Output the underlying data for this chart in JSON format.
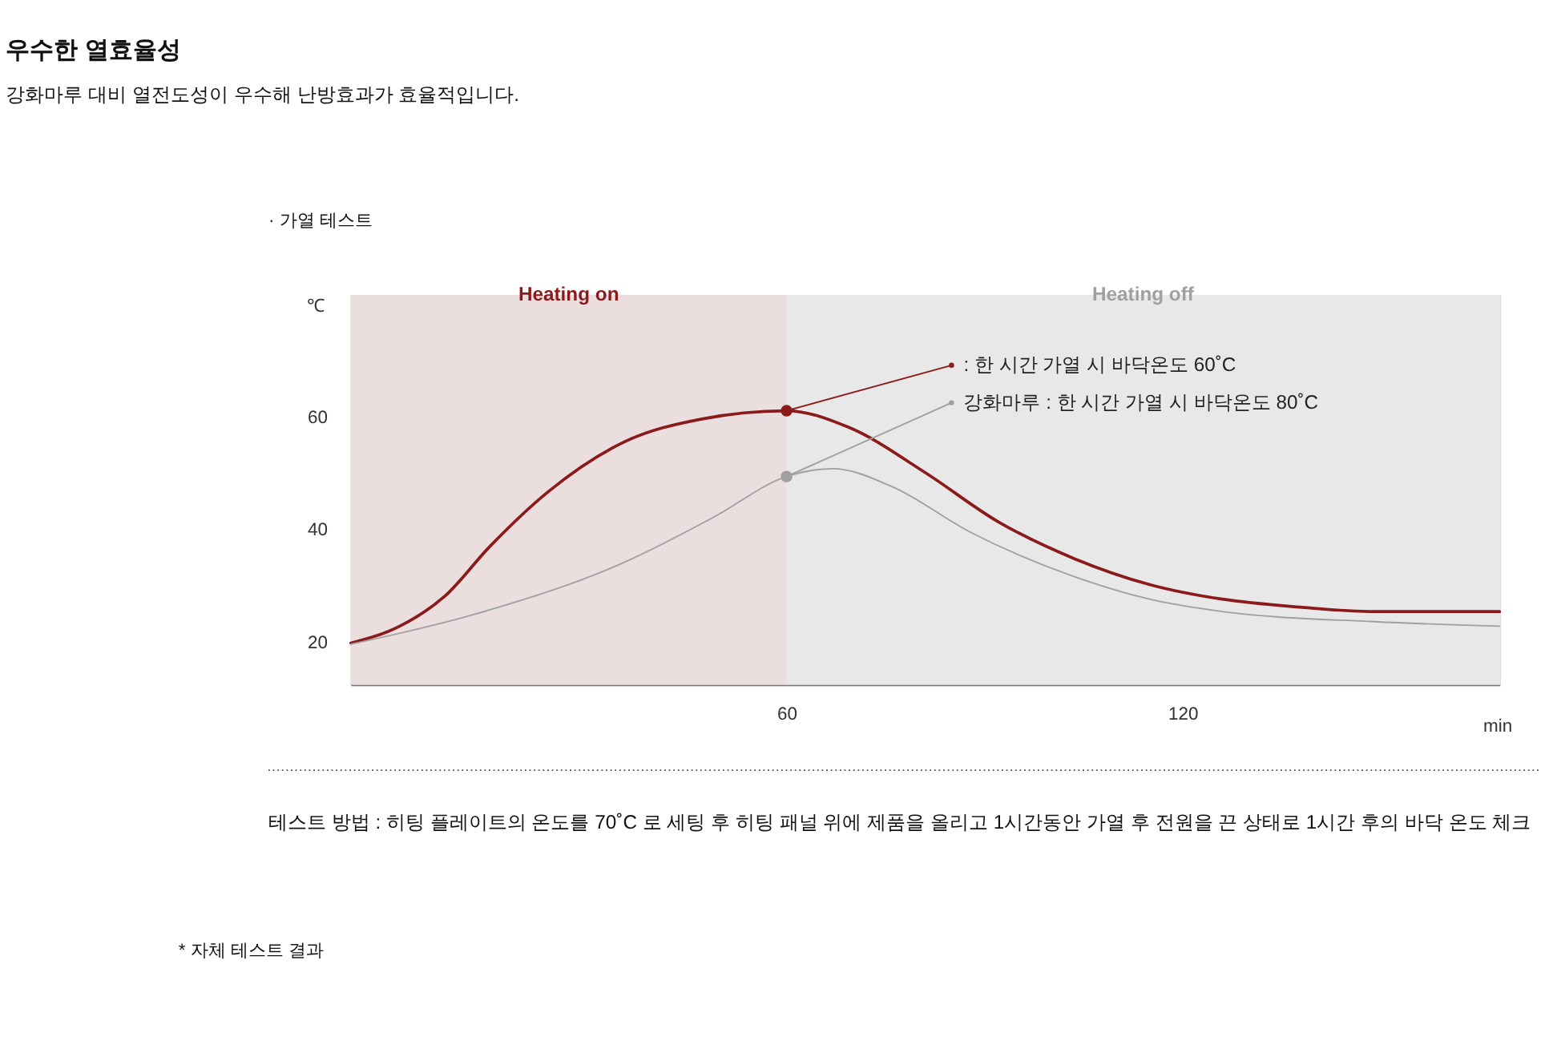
{
  "chart_data": {
    "type": "line",
    "title": "우수한 열효율성",
    "subtitle": "강화마루 대비 열전도성이 우수해 난방효과가 효율적입니다.",
    "xlabel": "min",
    "ylabel": "℃",
    "xlim": [
      -6,
      168
    ],
    "ylim": [
      12.3,
      81.6
    ],
    "xticks": [
      60,
      120
    ],
    "yticks": [
      20,
      40,
      60
    ],
    "grid": false,
    "marker": "none",
    "line_style": "solid",
    "series": [
      {
        "color": "#8b1a1a",
        "x": [
          -6,
          1.4,
          8.2,
          15,
          24,
          35.5,
          47,
          60,
          69.5,
          81,
          92,
          103.6,
          115,
          126,
          137.7,
          149,
          168
        ],
        "values": [
          19.7,
          22.7,
          28,
          36.8,
          46.7,
          55.5,
          59.5,
          61,
          58,
          50,
          41.3,
          34.7,
          30.1,
          27.5,
          26.1,
          25.3,
          25.3
        ]
      },
      {
        "color": "#a0a0a2",
        "x": [
          -6,
          12.7,
          35.5,
          49,
          60,
          67,
          76,
          87.7,
          103.6,
          115,
          126,
          149,
          168
        ],
        "values": [
          19.5,
          24.8,
          34.1,
          42.1,
          49.3,
          50.7,
          47.5,
          39.5,
          31.5,
          27.5,
          25.3,
          23.5,
          22.7
        ]
      }
    ],
    "bands": [
      {
        "axis": "x",
        "from": -6,
        "to": 60,
        "label": "Heating on",
        "color": "#eadede"
      },
      {
        "axis": "x",
        "from": 60,
        "to": 168,
        "label": "Heating off",
        "color": "#e8e8e8"
      }
    ],
    "annotations": [
      "· 가열 테스트",
      {
        "text": ": 한 시간 가열 시 바닥온도 60˚C",
        "x": 60,
        "y": 61
      },
      {
        "text": "강화마루 : 한 시간 가열 시 바닥온도 80˚C",
        "x": 60,
        "y": 49.3
      },
      "테스트 방법 : 히팅 플레이트의 온도를 70˚C 로 세팅 후 히팅 패널 위에 제품을 올리고 1시간동안 가열 후 전원을 끈 상태로 1시간 후의 바닥 온도 체크",
      "* 자체 테스트 결과"
    ]
  }
}
